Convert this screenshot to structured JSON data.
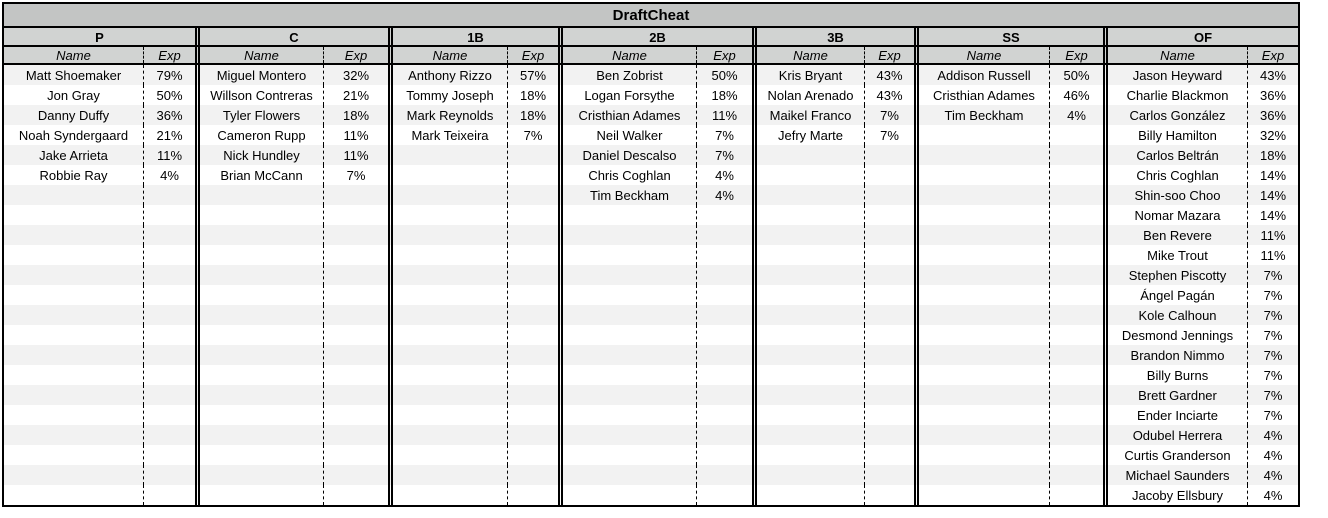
{
  "title": "DraftCheat",
  "columns": {
    "name_header": "Name",
    "exp_header": "Exp"
  },
  "row_count": 22,
  "colors": {
    "title_fill": "#c3c5c4",
    "header_fill": "#d1d3d2",
    "band_fill": "#f2f2f2",
    "row_fill": "#ffffff",
    "border": "#000000"
  },
  "positions": [
    {
      "label": "P",
      "players": [
        {
          "name": "Matt Shoemaker",
          "exp": "79%"
        },
        {
          "name": "Jon Gray",
          "exp": "50%"
        },
        {
          "name": "Danny Duffy",
          "exp": "36%"
        },
        {
          "name": "Noah Syndergaard",
          "exp": "21%"
        },
        {
          "name": "Jake Arrieta",
          "exp": "11%"
        },
        {
          "name": "Robbie Ray",
          "exp": "4%"
        }
      ]
    },
    {
      "label": "C",
      "players": [
        {
          "name": "Miguel Montero",
          "exp": "32%"
        },
        {
          "name": "Willson Contreras",
          "exp": "21%"
        },
        {
          "name": "Tyler Flowers",
          "exp": "18%"
        },
        {
          "name": "Cameron Rupp",
          "exp": "11%"
        },
        {
          "name": "Nick Hundley",
          "exp": "11%"
        },
        {
          "name": "Brian McCann",
          "exp": "7%"
        }
      ]
    },
    {
      "label": "1B",
      "players": [
        {
          "name": "Anthony Rizzo",
          "exp": "57%"
        },
        {
          "name": "Tommy Joseph",
          "exp": "18%"
        },
        {
          "name": "Mark Reynolds",
          "exp": "18%"
        },
        {
          "name": "Mark Teixeira",
          "exp": "7%"
        }
      ]
    },
    {
      "label": "2B",
      "players": [
        {
          "name": "Ben Zobrist",
          "exp": "50%"
        },
        {
          "name": "Logan Forsythe",
          "exp": "18%"
        },
        {
          "name": "Cristhian Adames",
          "exp": "11%"
        },
        {
          "name": "Neil Walker",
          "exp": "7%"
        },
        {
          "name": "Daniel Descalso",
          "exp": "7%"
        },
        {
          "name": "Chris Coghlan",
          "exp": "4%"
        },
        {
          "name": "Tim Beckham",
          "exp": "4%"
        }
      ]
    },
    {
      "label": "3B",
      "players": [
        {
          "name": "Kris Bryant",
          "exp": "43%"
        },
        {
          "name": "Nolan Arenado",
          "exp": "43%"
        },
        {
          "name": "Maikel Franco",
          "exp": "7%"
        },
        {
          "name": "Jefry Marte",
          "exp": "7%"
        }
      ]
    },
    {
      "label": "SS",
      "players": [
        {
          "name": "Addison Russell",
          "exp": "50%"
        },
        {
          "name": "Cristhian Adames",
          "exp": "46%"
        },
        {
          "name": "Tim Beckham",
          "exp": "4%"
        }
      ]
    },
    {
      "label": "OF",
      "players": [
        {
          "name": "Jason Heyward",
          "exp": "43%"
        },
        {
          "name": "Charlie Blackmon",
          "exp": "36%"
        },
        {
          "name": "Carlos González",
          "exp": "36%"
        },
        {
          "name": "Billy Hamilton",
          "exp": "32%"
        },
        {
          "name": "Carlos Beltrán",
          "exp": "18%"
        },
        {
          "name": "Chris Coghlan",
          "exp": "14%"
        },
        {
          "name": "Shin-soo Choo",
          "exp": "14%"
        },
        {
          "name": "Nomar Mazara",
          "exp": "14%"
        },
        {
          "name": "Ben Revere",
          "exp": "11%"
        },
        {
          "name": "Mike Trout",
          "exp": "11%"
        },
        {
          "name": "Stephen Piscotty",
          "exp": "7%"
        },
        {
          "name": "Ángel Pagán",
          "exp": "7%"
        },
        {
          "name": "Kole Calhoun",
          "exp": "7%"
        },
        {
          "name": "Desmond Jennings",
          "exp": "7%"
        },
        {
          "name": "Brandon Nimmo",
          "exp": "7%"
        },
        {
          "name": "Billy Burns",
          "exp": "7%"
        },
        {
          "name": "Brett Gardner",
          "exp": "7%"
        },
        {
          "name": "Ender Inciarte",
          "exp": "7%"
        },
        {
          "name": "Odubel Herrera",
          "exp": "4%"
        },
        {
          "name": "Curtis Granderson",
          "exp": "4%"
        },
        {
          "name": "Michael Saunders",
          "exp": "4%"
        },
        {
          "name": "Jacoby Ellsbury",
          "exp": "4%"
        }
      ]
    }
  ]
}
